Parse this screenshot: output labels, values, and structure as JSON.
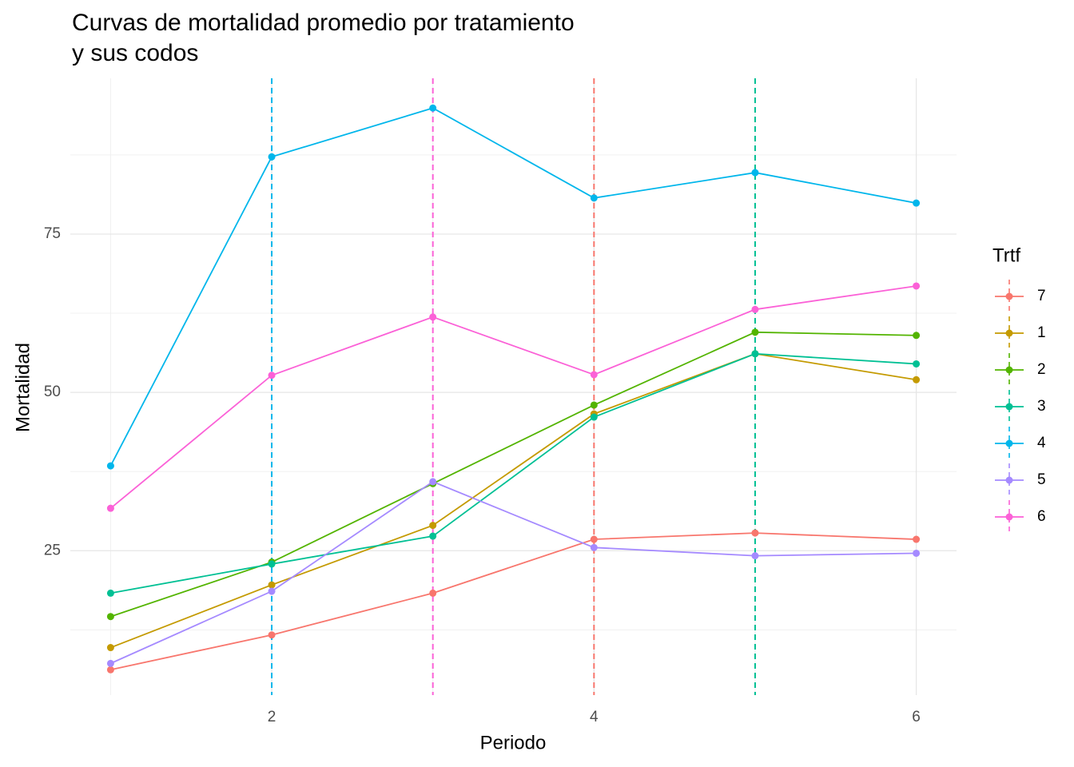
{
  "chart_data": {
    "type": "line",
    "title": "Curvas de mortalidad promedio por tratamiento\ny sus codos",
    "x_label": "Periodo",
    "y_label": "Mortalidad",
    "legend_title": "Trtf",
    "legend_position": "right",
    "x": [
      1,
      2,
      3,
      4,
      5,
      6
    ],
    "xlim": [
      0.75,
      6.25
    ],
    "xticks": [
      2,
      4,
      6
    ],
    "minor_xticks": [
      1,
      3,
      5
    ],
    "ylim": [
      2.2,
      99.6
    ],
    "yticks": [
      25,
      50,
      75
    ],
    "minor_yticks": [
      12.5,
      37.5,
      62.5,
      87.5
    ],
    "grid": true,
    "series": [
      {
        "name": "7",
        "color": "#F8766D",
        "values": [
          6.2,
          11.7,
          18.3,
          26.8,
          27.8,
          26.8
        ],
        "elbow": 4
      },
      {
        "name": "1",
        "color": "#C49A00",
        "values": [
          9.7,
          19.6,
          29.0,
          46.6,
          56.1,
          52.0
        ]
      },
      {
        "name": "2",
        "color": "#53B400",
        "values": [
          14.6,
          23.2,
          35.6,
          48.0,
          59.5,
          59.0
        ]
      },
      {
        "name": "3",
        "color": "#00C094",
        "values": [
          18.3,
          22.9,
          27.3,
          46.1,
          56.1,
          54.5
        ],
        "elbow": 5
      },
      {
        "name": "4",
        "color": "#00B6EB",
        "values": [
          38.4,
          87.2,
          94.9,
          80.7,
          84.7,
          79.9
        ],
        "elbow": 2
      },
      {
        "name": "5",
        "color": "#A58AFF",
        "values": [
          7.2,
          18.6,
          35.9,
          25.5,
          24.2,
          24.6
        ]
      },
      {
        "name": "6",
        "color": "#FB61D7",
        "values": [
          31.7,
          52.7,
          61.9,
          52.8,
          63.1,
          66.8
        ],
        "elbow": 3
      }
    ]
  }
}
